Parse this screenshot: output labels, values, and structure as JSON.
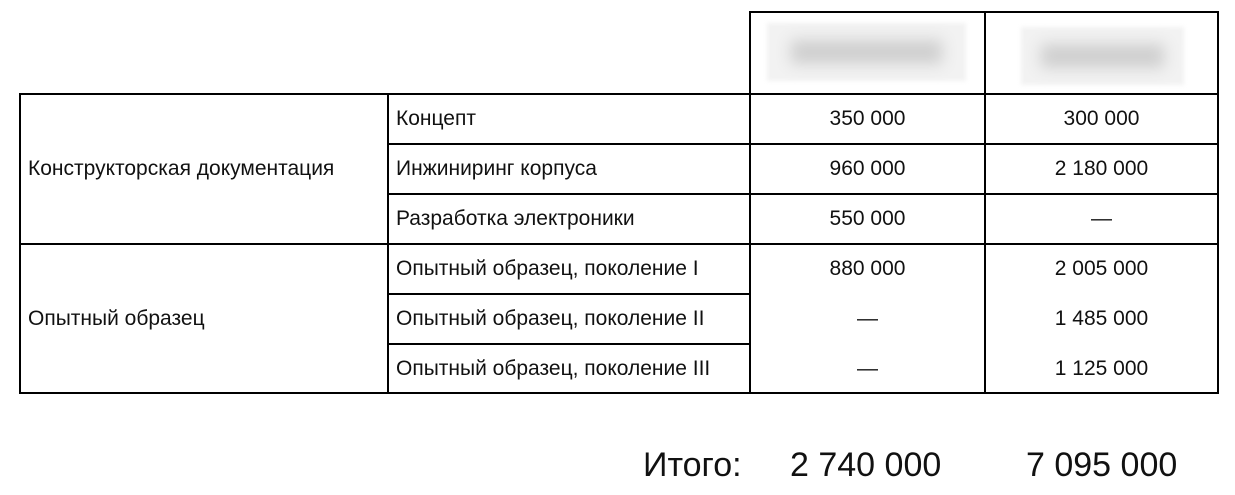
{
  "groups": [
    {
      "label": "Конструкторская документация",
      "rows": [
        {
          "item": "Концепт",
          "a": "350 000",
          "b": "300 000"
        },
        {
          "item": "Инжиниринг корпуса",
          "a": "960 000",
          "b": "2 180 000"
        },
        {
          "item": "Разработка электроники",
          "a": "550 000",
          "b": "—"
        }
      ]
    },
    {
      "label": "Опытный образец",
      "rows": [
        {
          "item": "Опытный образец, поколение I",
          "a": "880 000",
          "b": "2 005 000"
        },
        {
          "item": "Опытный образец, поколение II",
          "a": "—",
          "b": "1 485 000"
        },
        {
          "item": "Опытный образец, поколение III",
          "a": "—",
          "b": "1 125 000"
        }
      ]
    }
  ],
  "totals": {
    "label": "Итого:",
    "a": "2 740 000",
    "b": "7 095 000"
  }
}
